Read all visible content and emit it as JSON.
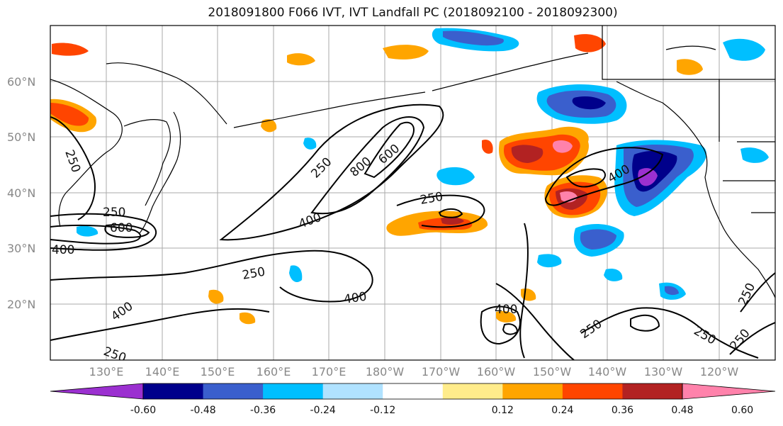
{
  "title": "2018091800 F066 IVT, IVT Landfall PC (2018092100 - 2018092300)",
  "lat_labels": [
    "60°N",
    "50°N",
    "40°N",
    "30°N",
    "20°N"
  ],
  "lon_labels": [
    "130°E",
    "140°E",
    "150°E",
    "160°E",
    "170°E",
    "180°W",
    "170°W",
    "160°W",
    "150°W",
    "140°W",
    "130°W",
    "120°W"
  ],
  "colorbar": {
    "colors": [
      "#9b30d0",
      "#00008b",
      "#3a5fcd",
      "#00bfff",
      "#b0e2ff",
      "#ffffff",
      "#ffec8b",
      "#ffa500",
      "#ff4500",
      "#b22222",
      "#ff82ab"
    ],
    "tick_labels": [
      "-0.60",
      "-0.48",
      "-0.36",
      "-0.24",
      "-0.12",
      "0.12",
      "0.24",
      "0.36",
      "0.48",
      "0.60"
    ]
  },
  "contour_labels": [
    "250",
    "400",
    "600",
    "800"
  ]
}
